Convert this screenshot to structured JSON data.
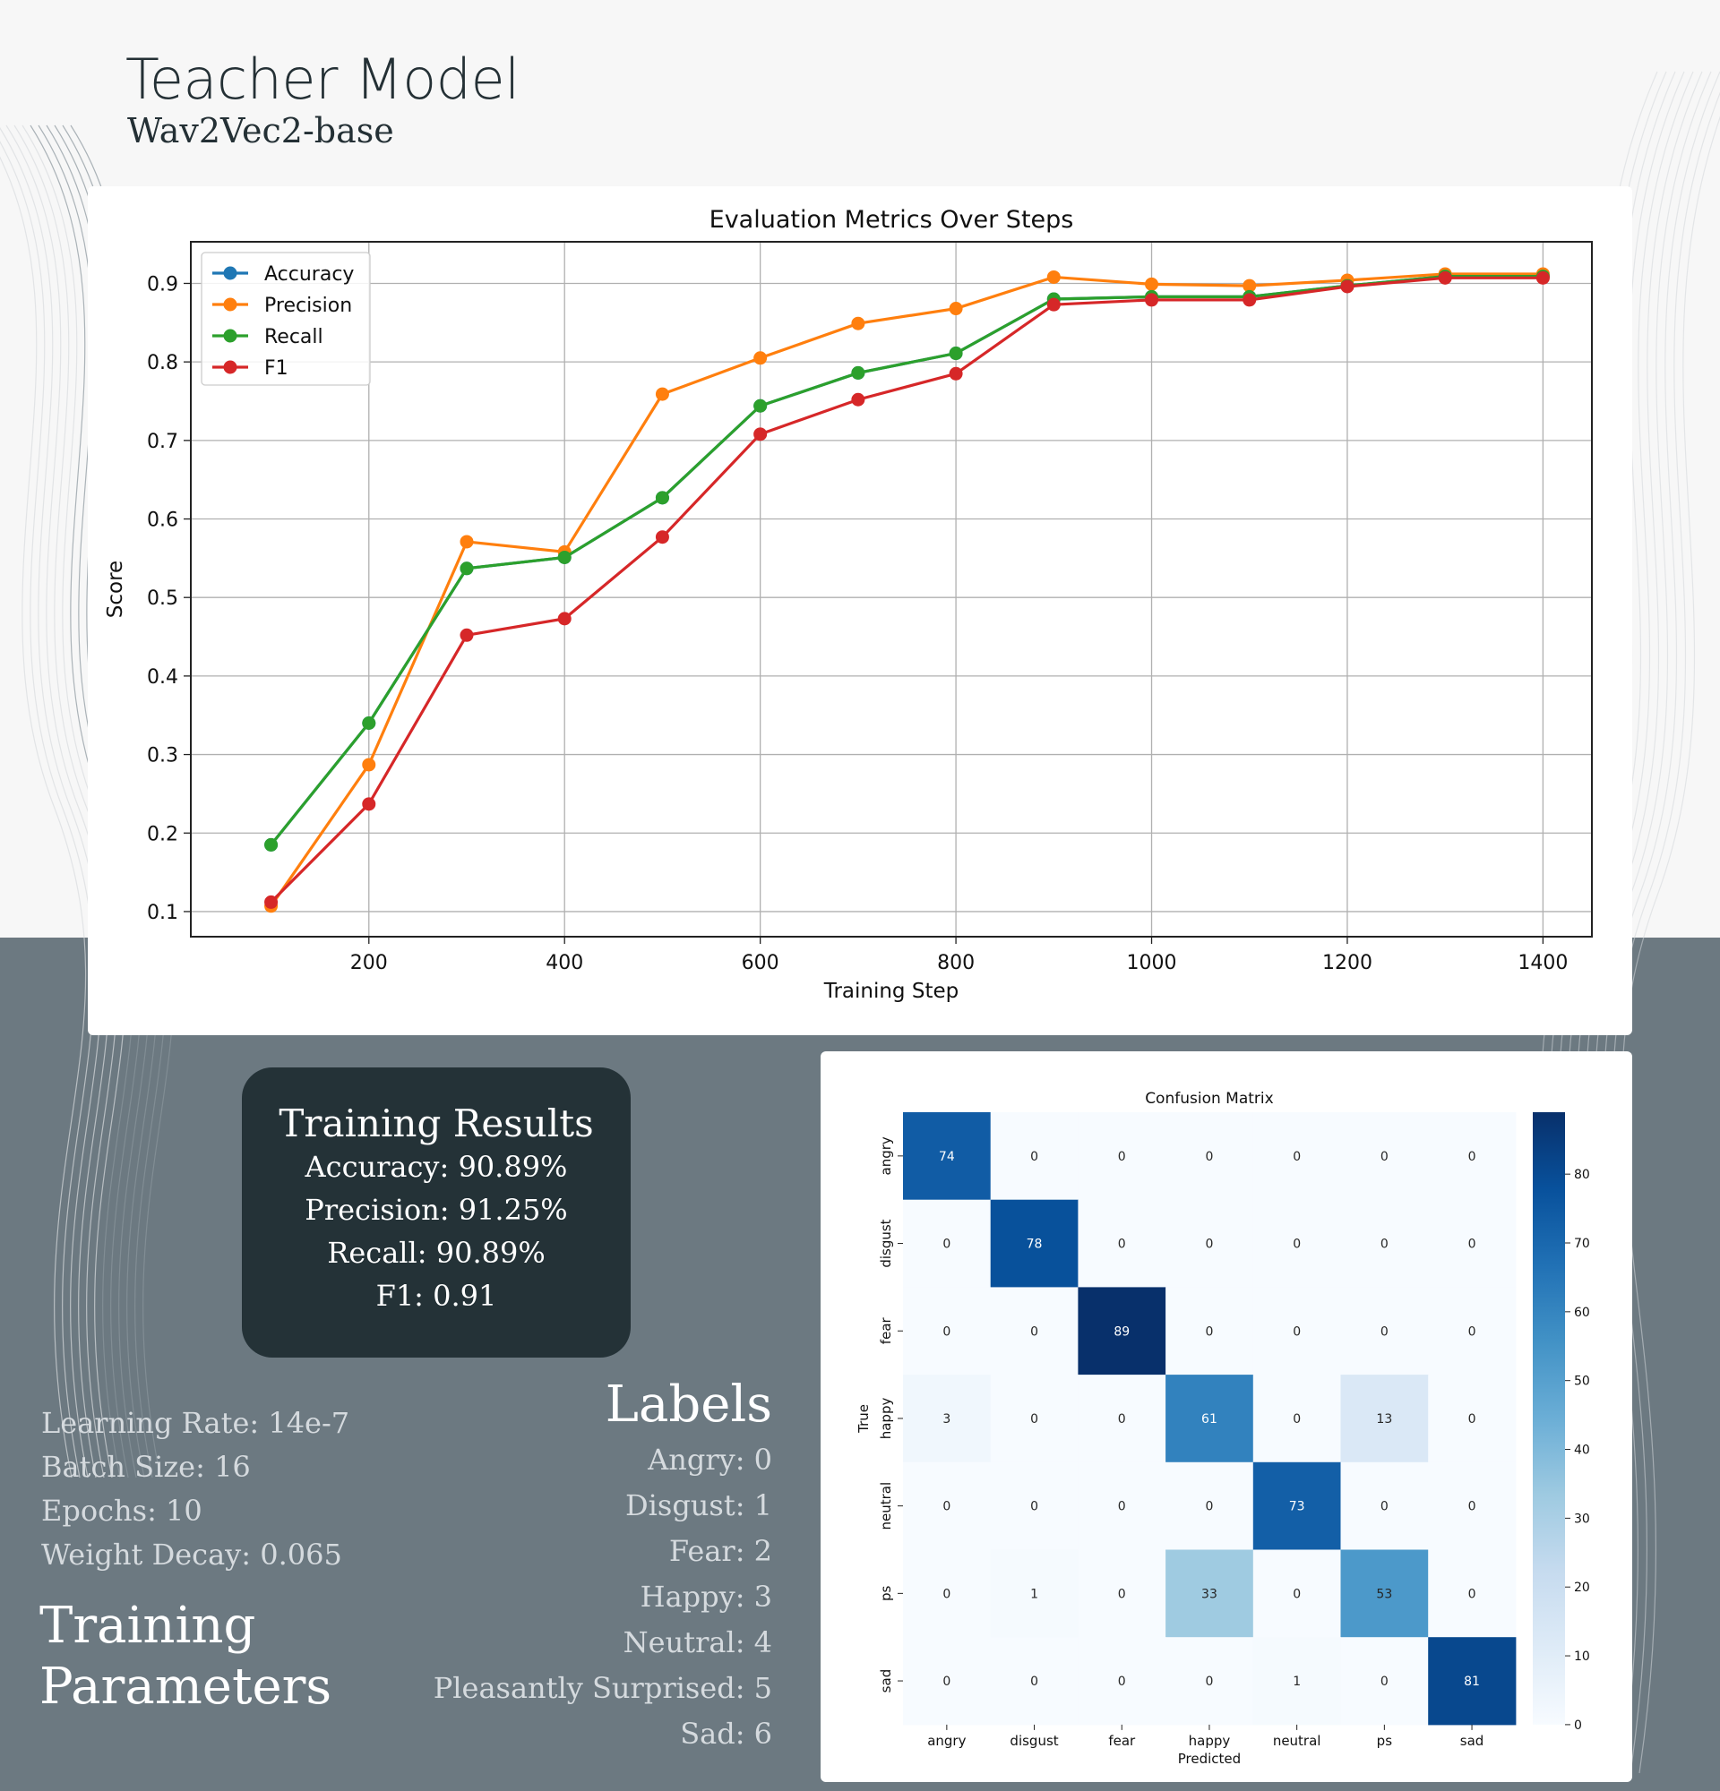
{
  "header": {
    "title": "Teacher Model",
    "subtitle": "Wav2Vec2-base"
  },
  "results": {
    "title": "Training Results",
    "lines": [
      "Accuracy: 90.89%",
      "Precision: 91.25%",
      "Recall: 90.89%",
      "F1: 0.91"
    ]
  },
  "params": {
    "lines": [
      "Learning Rate: 14e-7",
      "Batch Size: 16",
      "Epochs: 10",
      "Weight Decay: 0.065"
    ],
    "title_line1": "Training",
    "title_line2": "Parameters"
  },
  "labels": {
    "title": "Labels",
    "lines": [
      "Angry: 0",
      "Disgust: 1",
      "Fear: 2",
      "Happy: 3",
      "Neutral: 4",
      "Pleasantly Surprised: 5",
      "Sad: 6"
    ]
  },
  "chart_data": [
    {
      "type": "line",
      "title": "Evaluation Metrics Over Steps",
      "xlabel": "Training Step",
      "ylabel": "Score",
      "x": [
        100,
        200,
        300,
        400,
        500,
        600,
        700,
        800,
        900,
        1000,
        1100,
        1200,
        1300,
        1400
      ],
      "xticks": [
        200,
        400,
        600,
        800,
        1000,
        1200,
        1400
      ],
      "yticks": [
        0.1,
        0.2,
        0.3,
        0.4,
        0.5,
        0.6,
        0.7,
        0.8,
        0.9
      ],
      "xlim": [
        18,
        1450
      ],
      "ylim": [
        0.068,
        0.953
      ],
      "grid": true,
      "legend": "top-left",
      "series": [
        {
          "name": "Accuracy",
          "color": "#1f77b4",
          "values": [
            0.185,
            0.34,
            0.537,
            0.551,
            0.627,
            0.744,
            0.786,
            0.811,
            0.88,
            0.883,
            0.883,
            0.897,
            0.909,
            0.909
          ]
        },
        {
          "name": "Precision",
          "color": "#ff7f0e",
          "values": [
            0.107,
            0.287,
            0.571,
            0.558,
            0.759,
            0.805,
            0.849,
            0.868,
            0.908,
            0.899,
            0.897,
            0.904,
            0.912,
            0.912
          ]
        },
        {
          "name": "Recall",
          "color": "#2ca02c",
          "values": [
            0.185,
            0.34,
            0.537,
            0.551,
            0.627,
            0.744,
            0.786,
            0.811,
            0.88,
            0.883,
            0.883,
            0.897,
            0.909,
            0.909
          ]
        },
        {
          "name": "F1",
          "color": "#d62728",
          "values": [
            0.112,
            0.237,
            0.452,
            0.473,
            0.577,
            0.708,
            0.752,
            0.785,
            0.873,
            0.879,
            0.879,
            0.896,
            0.907,
            0.907
          ]
        }
      ]
    },
    {
      "type": "heatmap",
      "title": "Confusion Matrix",
      "xlabel": "Predicted",
      "ylabel": "True",
      "categories": [
        "angry",
        "disgust",
        "fear",
        "happy",
        "neutral",
        "ps",
        "sad"
      ],
      "matrix": [
        [
          74,
          0,
          0,
          0,
          0,
          0,
          0
        ],
        [
          0,
          78,
          0,
          0,
          0,
          0,
          0
        ],
        [
          0,
          0,
          89,
          0,
          0,
          0,
          0
        ],
        [
          3,
          0,
          0,
          61,
          0,
          13,
          0
        ],
        [
          0,
          0,
          0,
          0,
          73,
          0,
          0
        ],
        [
          0,
          1,
          0,
          33,
          0,
          53,
          0
        ],
        [
          0,
          0,
          0,
          0,
          1,
          0,
          81
        ]
      ],
      "colorscale": "Blues",
      "vmin": 0,
      "vmax": 89,
      "colorbar_ticks": [
        0,
        10,
        20,
        30,
        40,
        50,
        60,
        70,
        80
      ]
    }
  ]
}
